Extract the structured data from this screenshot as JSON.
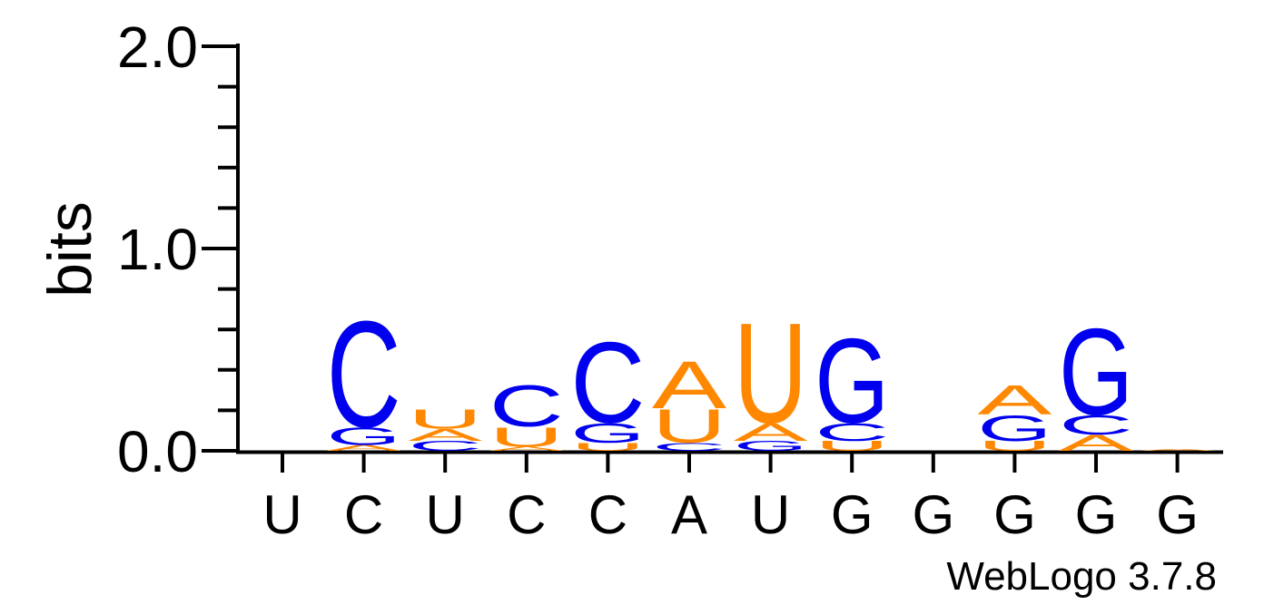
{
  "chart_data": {
    "type": "sequence-logo",
    "ylabel": "bits",
    "ylim": [
      0,
      2.0
    ],
    "yticks": [
      "0.0",
      "1.0",
      "2.0"
    ],
    "xticks": [
      "U",
      "C",
      "U",
      "C",
      "C",
      "A",
      "U",
      "G",
      "G",
      "G",
      "G",
      "G"
    ],
    "footer": "WebLogo 3.7.8",
    "colors": {
      "A": "#ff8800",
      "C": "#0000ee",
      "G": "#0000ee",
      "U": "#ff8800"
    },
    "positions": [
      {
        "stack": []
      },
      {
        "stack": [
          {
            "letter": "A",
            "height": 0.03
          },
          {
            "letter": "G",
            "height": 0.09
          },
          {
            "letter": "C",
            "height": 0.54
          }
        ]
      },
      {
        "stack": [
          {
            "letter": "C",
            "height": 0.05
          },
          {
            "letter": "A",
            "height": 0.06
          },
          {
            "letter": "U",
            "height": 0.1
          }
        ]
      },
      {
        "stack": [
          {
            "letter": "A",
            "height": 0.02
          },
          {
            "letter": "U",
            "height": 0.1
          },
          {
            "letter": "C",
            "height": 0.21
          }
        ]
      },
      {
        "stack": [
          {
            "letter": "U",
            "height": 0.04
          },
          {
            "letter": "G",
            "height": 0.1
          },
          {
            "letter": "C",
            "height": 0.41
          }
        ]
      },
      {
        "stack": [
          {
            "letter": "C",
            "height": 0.04
          },
          {
            "letter": "U",
            "height": 0.17
          },
          {
            "letter": "A",
            "height": 0.24
          }
        ]
      },
      {
        "stack": [
          {
            "letter": "G",
            "height": 0.05
          },
          {
            "letter": "A",
            "height": 0.09
          },
          {
            "letter": "U",
            "height": 0.51
          }
        ]
      },
      {
        "stack": [
          {
            "letter": "U",
            "height": 0.05
          },
          {
            "letter": "C",
            "height": 0.09
          },
          {
            "letter": "G",
            "height": 0.43
          }
        ]
      },
      {
        "stack": []
      },
      {
        "stack": [
          {
            "letter": "U",
            "height": 0.05
          },
          {
            "letter": "G",
            "height": 0.13
          },
          {
            "letter": "A",
            "height": 0.15
          }
        ]
      },
      {
        "stack": [
          {
            "letter": "A",
            "height": 0.08
          },
          {
            "letter": "C",
            "height": 0.1
          },
          {
            "letter": "G",
            "height": 0.44
          }
        ]
      },
      {
        "stack": [
          {
            "letter": "A",
            "height": 0.01
          }
        ]
      }
    ]
  }
}
